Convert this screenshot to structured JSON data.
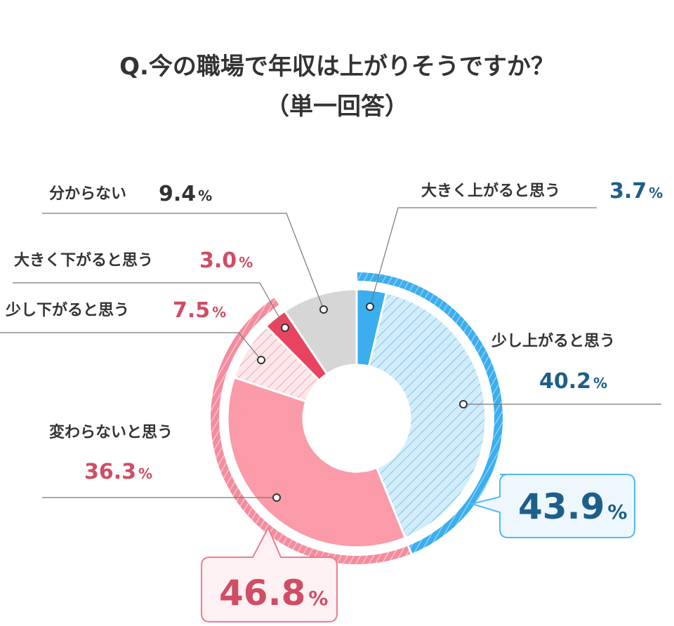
{
  "title": {
    "line1": "Q.今の職場で年収は上がりそうですか？",
    "line2": "（単一回答）"
  },
  "percent_sign": "%",
  "colors": {
    "up_big": "#3aaeee",
    "up_small": "#d2ecfa",
    "up_hatch": "#7ec3ea",
    "down_big": "#e9445f",
    "down_small": "#fde7ea",
    "down_hatch": "#f4a7b2",
    "no_change": "#fb9aa8",
    "unknown": "#d6d6d6",
    "blue_text": "#1c5f8a",
    "red_text": "#d04d64",
    "blue_ring": "#57b8f0",
    "pink_ring": "#f7a6b3"
  },
  "chart_data": {
    "type": "pie",
    "variant": "donut",
    "title": "Q.今の職場で年収は上がりそうですか？（単一回答）",
    "categories": [
      "大きく上がると思う",
      "少し上がると思う",
      "変わらないと思う",
      "少し下がると思う",
      "大きく下がると思う",
      "分からない"
    ],
    "values": [
      3.7,
      40.2,
      36.3,
      7.5,
      3.0,
      9.4
    ],
    "unit": "%",
    "groups": [
      {
        "name": "up",
        "members": [
          "大きく上がると思う",
          "少し上がると思う"
        ],
        "total": 43.9
      },
      {
        "name": "down_or_same",
        "members": [
          "変わらないと思う",
          "少し下がると思う",
          "大きく下がると思う"
        ],
        "total": 46.8
      }
    ]
  },
  "labels": {
    "up_big": {
      "text": "大きく上がると思う",
      "value": "3.7"
    },
    "up_small": {
      "text": "少し上がると思う",
      "value": "40.2"
    },
    "no_change": {
      "text": "変わらないと思う",
      "value": "36.3"
    },
    "down_small": {
      "text": "少し下がると思う",
      "value": "7.5"
    },
    "down_big": {
      "text": "大きく下がると思う",
      "value": "3.0"
    },
    "unknown": {
      "text": "分からない",
      "value": "9.4"
    }
  },
  "totals": {
    "up": "43.9",
    "down": "46.8"
  }
}
